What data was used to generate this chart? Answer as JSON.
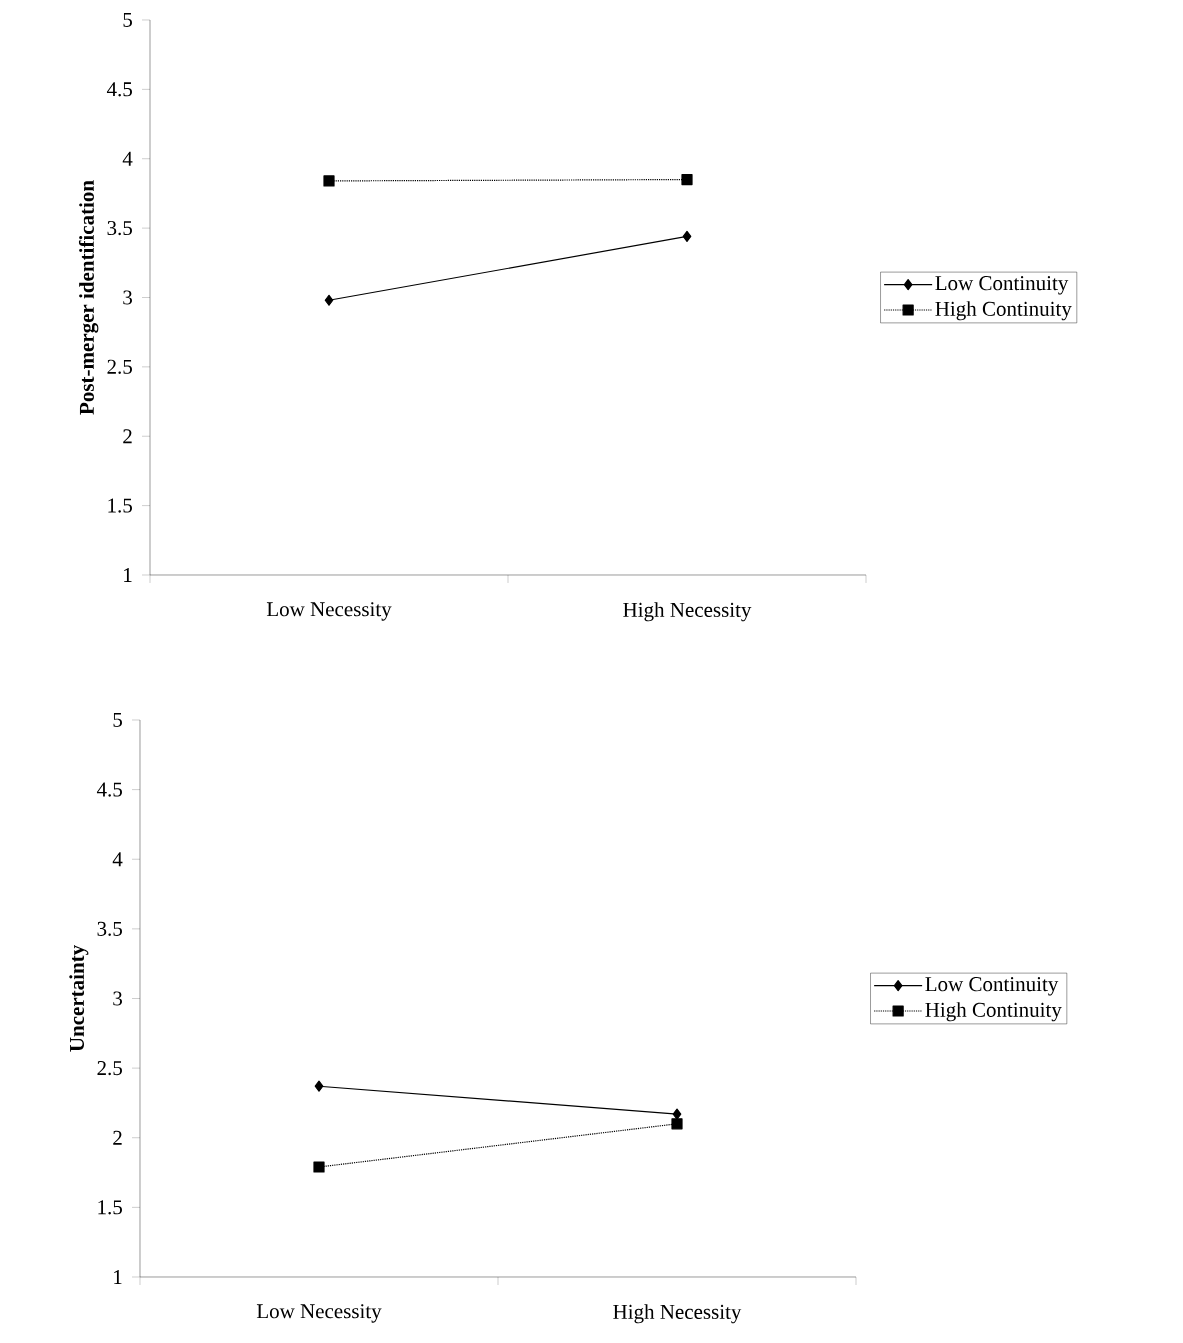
{
  "chart_data": [
    {
      "type": "line",
      "ylabel": "Post-merger identification",
      "categories": [
        "Low Necessity",
        "High Necessity"
      ],
      "ylim": [
        1,
        5
      ],
      "yticks": [
        1,
        1.5,
        2,
        2.5,
        3,
        3.5,
        4,
        4.5,
        5
      ],
      "legend": "right",
      "series": [
        {
          "name": "Low Continuity",
          "color": "#000000",
          "values": [
            2.98,
            3.44
          ],
          "marker": "diamond",
          "line_style": "solid"
        },
        {
          "name": "High Continuity",
          "color": "#000000",
          "values": [
            3.84,
            3.85
          ],
          "marker": "square",
          "line_style": "dotted"
        }
      ]
    },
    {
      "type": "line",
      "ylabel": "Uncertainty",
      "categories": [
        "Low Necessity",
        "High Necessity"
      ],
      "ylim": [
        1,
        5
      ],
      "yticks": [
        1,
        1.5,
        2,
        2.5,
        3,
        3.5,
        4,
        4.5,
        5
      ],
      "legend": "right",
      "series": [
        {
          "name": "Low Continuity",
          "color": "#000000",
          "values": [
            2.37,
            2.17
          ],
          "marker": "diamond",
          "line_style": "solid"
        },
        {
          "name": "High Continuity",
          "color": "#000000",
          "values": [
            1.79,
            2.1
          ],
          "marker": "square",
          "line_style": "dotted"
        }
      ]
    }
  ]
}
